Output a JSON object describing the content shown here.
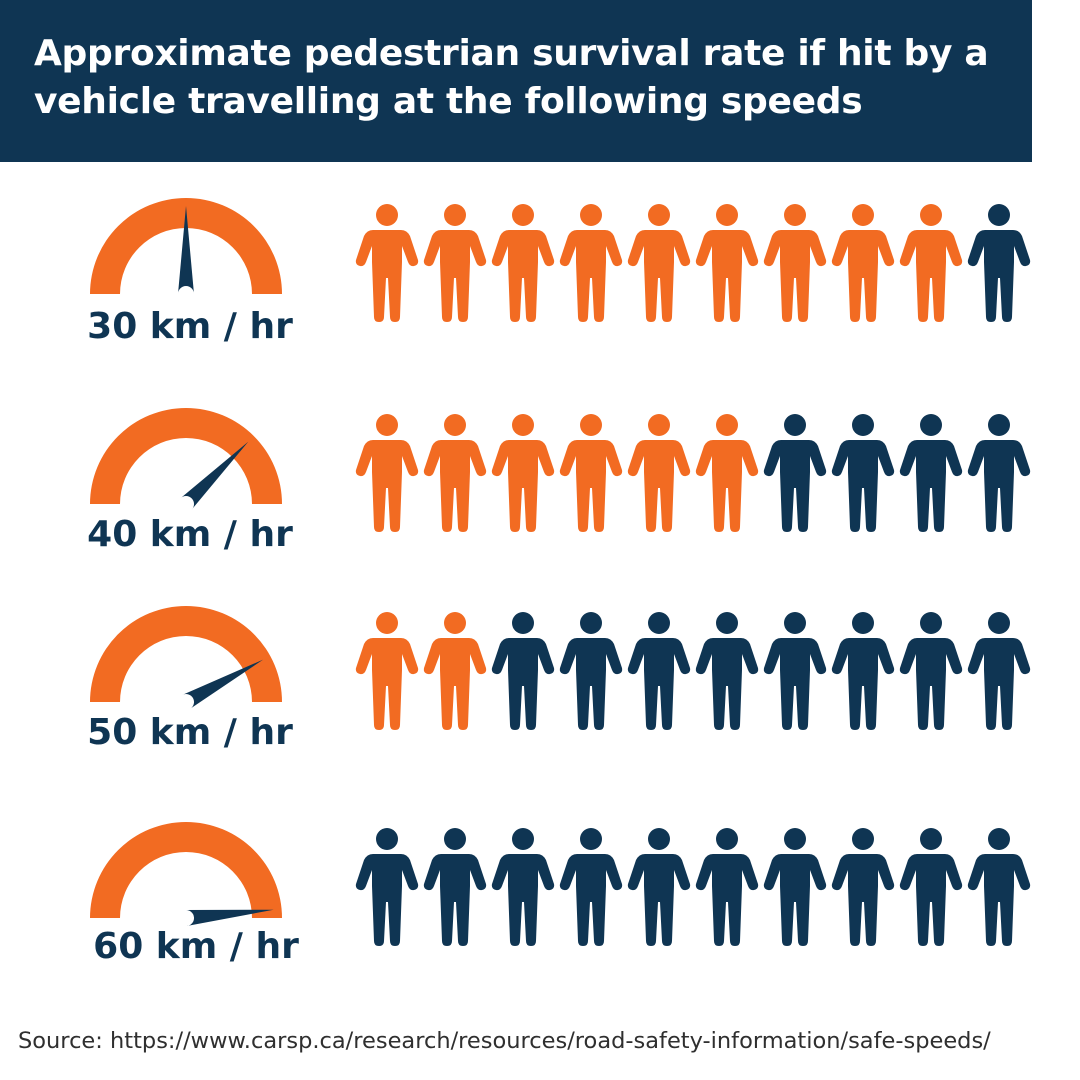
{
  "title": "Approximate pedestrian survival rate if hit by a vehicle travelling at the following speeds",
  "colors": {
    "survive": "#f26b22",
    "die": "#0f3553",
    "gauge": "#f26b22",
    "needle": "#0f3553"
  },
  "icons": {
    "gauge": "speedometer-icon",
    "person": "person-icon"
  },
  "rows": [
    {
      "speed_label": "30 km / hr",
      "survivors": 9,
      "total": 10,
      "needle_fraction": 0.5
    },
    {
      "speed_label": "40 km / hr",
      "survivors": 6,
      "total": 10,
      "needle_fraction": 0.75
    },
    {
      "speed_label": "50 km / hr",
      "survivors": 2,
      "total": 10,
      "needle_fraction": 0.84
    },
    {
      "speed_label": "60 km / hr",
      "survivors": 0,
      "total": 10,
      "needle_fraction": 0.97
    }
  ],
  "source": "Source: https://www.carsp.ca/research/resources/road-safety-information/safe-speeds/"
}
